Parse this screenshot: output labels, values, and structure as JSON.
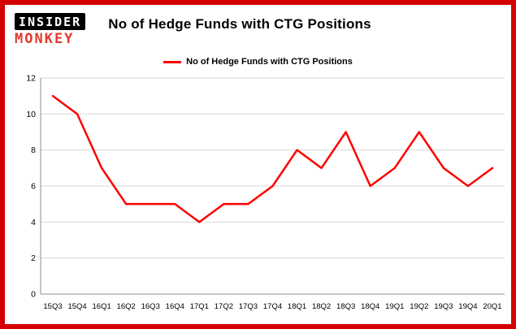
{
  "header": {
    "logo": {
      "line1": "INSIDER",
      "line2": "MONKEY"
    },
    "title": "No of Hedge Funds with CTG Positions"
  },
  "legend": {
    "label": "No of Hedge Funds with CTG Positions",
    "color": "#ff0000"
  },
  "colors": {
    "border": "#d40000",
    "background": "#ffffff",
    "grid": "#d9d9d9",
    "axis": "#8c8c8c",
    "tick_text": "#000000",
    "series": "#ff0000"
  },
  "chart_data": {
    "type": "line",
    "title": "No of Hedge Funds with CTG Positions",
    "xlabel": "",
    "ylabel": "",
    "categories": [
      "15Q3",
      "15Q4",
      "16Q1",
      "16Q2",
      "16Q3",
      "16Q4",
      "17Q1",
      "17Q2",
      "17Q3",
      "17Q4",
      "18Q1",
      "18Q2",
      "18Q3",
      "18Q4",
      "19Q1",
      "19Q2",
      "19Q3",
      "19Q4",
      "20Q1"
    ],
    "series": [
      {
        "name": "No of Hedge Funds with CTG Positions",
        "color": "#ff0000",
        "values": [
          11,
          10,
          7,
          5,
          5,
          5,
          4,
          5,
          5,
          6,
          8,
          7,
          9,
          6,
          7,
          9,
          7,
          6,
          7
        ]
      }
    ],
    "ylim": [
      0,
      12
    ],
    "ytick_step": 2,
    "grid": true,
    "legend_position": "top"
  }
}
